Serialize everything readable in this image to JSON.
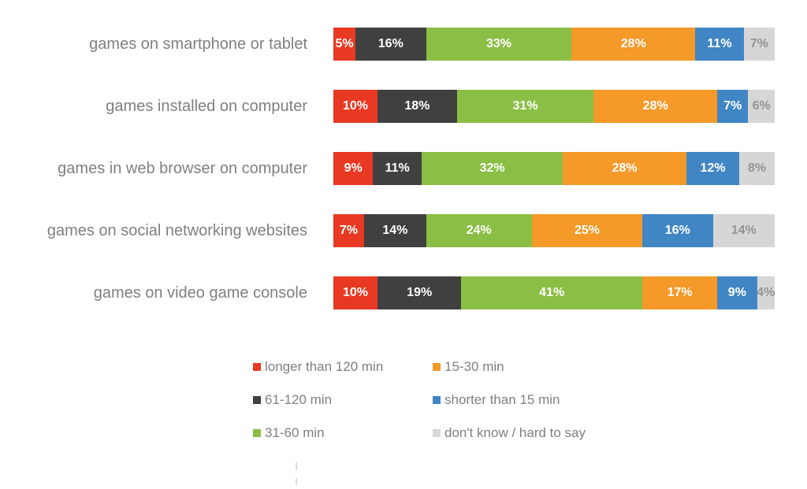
{
  "chart_data": {
    "type": "bar",
    "orientation": "horizontal",
    "stacked": true,
    "value_unit": "%",
    "value_labels": "inside",
    "xlim": [
      0,
      100
    ],
    "grid": false,
    "legend_position": "bottom",
    "categories": [
      "games on smartphone or tablet",
      "games installed on computer",
      "games in web browser on computer",
      "games on social networking websites",
      "games on video game console"
    ],
    "series": [
      {
        "name": "longer than 120 min",
        "color": "#E83923",
        "label_color": "#FFFFFF",
        "values": [
          5,
          10,
          9,
          7,
          10
        ]
      },
      {
        "name": "61-120 min",
        "color": "#404040",
        "label_color": "#FFFFFF",
        "values": [
          16,
          18,
          11,
          14,
          19
        ]
      },
      {
        "name": "31-60 min",
        "color": "#8BBE45",
        "label_color": "#FFFFFF",
        "values": [
          33,
          31,
          32,
          24,
          41
        ]
      },
      {
        "name": "15-30 min",
        "color": "#F59928",
        "label_color": "#FFFFFF",
        "values": [
          28,
          28,
          28,
          25,
          17
        ]
      },
      {
        "name": "shorter than 15 min",
        "color": "#4186C4",
        "label_color": "#FFFFFF",
        "values": [
          11,
          7,
          12,
          16,
          9
        ]
      },
      {
        "name": "don't know / hard to say",
        "color": "#D6D6D6",
        "label_color": "#939393",
        "values": [
          7,
          6,
          8,
          14,
          4
        ]
      }
    ]
  },
  "legend": {
    "columns": [
      [
        "longer than 120 min",
        "61-120 min",
        "31-60 min"
      ],
      [
        "15-30 min",
        "shorter than 15 min",
        "don't know / hard to say"
      ]
    ]
  },
  "text_colors": {
    "category_label": "#7F7F7F",
    "legend_label": "#7F7F7F"
  }
}
